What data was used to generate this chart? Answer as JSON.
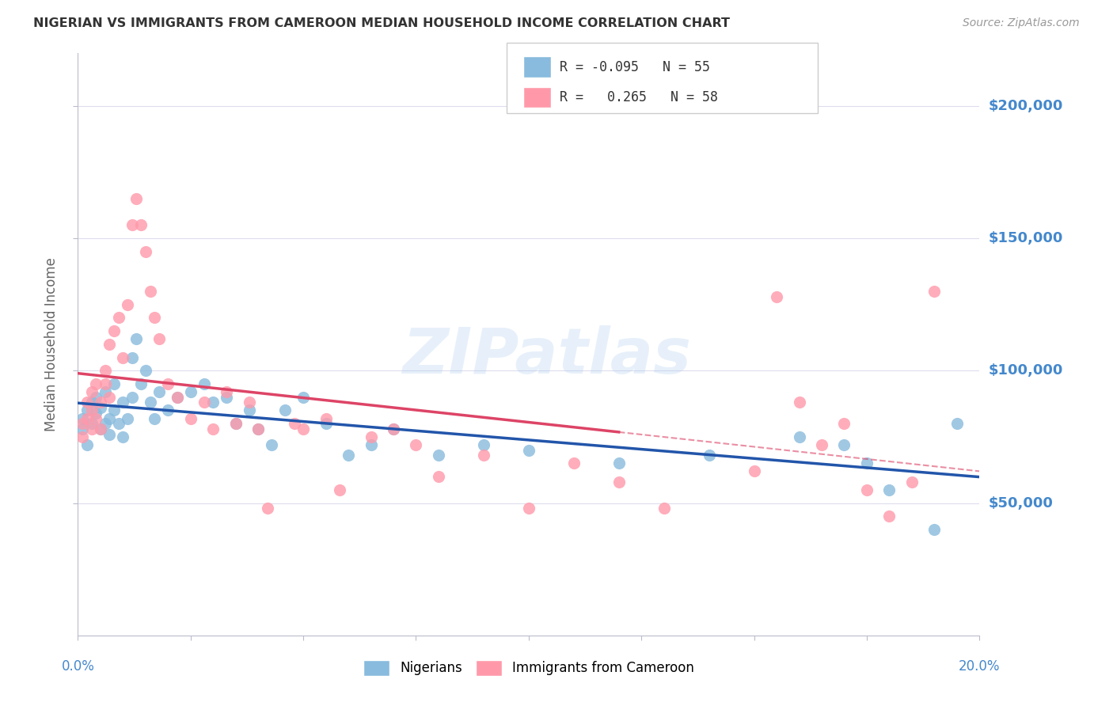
{
  "title": "NIGERIAN VS IMMIGRANTS FROM CAMEROON MEDIAN HOUSEHOLD INCOME CORRELATION CHART",
  "source": "Source: ZipAtlas.com",
  "ylabel": "Median Household Income",
  "watermark": "ZIPatlas",
  "ylim": [
    0,
    220000
  ],
  "xlim": [
    0.0,
    0.2
  ],
  "ytick_vals": [
    50000,
    100000,
    150000,
    200000
  ],
  "ytick_labels": [
    "$50,000",
    "$100,000",
    "$150,000",
    "$200,000"
  ],
  "xticks": [
    0.0,
    0.025,
    0.05,
    0.075,
    0.1,
    0.125,
    0.15,
    0.175,
    0.2
  ],
  "blue_color": "#88BBDD",
  "pink_color": "#FF99AA",
  "line_blue": "#2255AA",
  "line_pink": "#DD4466",
  "axis_color": "#4488CC",
  "grid_color": "#DDDDEE",
  "title_color": "#333333",
  "blue_scatter_x": [
    0.001,
    0.001,
    0.002,
    0.002,
    0.003,
    0.003,
    0.004,
    0.004,
    0.005,
    0.005,
    0.006,
    0.006,
    0.007,
    0.007,
    0.008,
    0.008,
    0.009,
    0.01,
    0.01,
    0.011,
    0.012,
    0.012,
    0.013,
    0.014,
    0.015,
    0.016,
    0.017,
    0.018,
    0.02,
    0.022,
    0.025,
    0.028,
    0.03,
    0.033,
    0.035,
    0.038,
    0.04,
    0.043,
    0.046,
    0.05,
    0.055,
    0.06,
    0.065,
    0.07,
    0.08,
    0.09,
    0.1,
    0.12,
    0.14,
    0.16,
    0.17,
    0.175,
    0.18,
    0.19,
    0.195
  ],
  "blue_scatter_y": [
    82000,
    78000,
    85000,
    72000,
    88000,
    80000,
    84000,
    90000,
    78000,
    86000,
    80000,
    92000,
    82000,
    76000,
    85000,
    95000,
    80000,
    88000,
    75000,
    82000,
    105000,
    90000,
    112000,
    95000,
    100000,
    88000,
    82000,
    92000,
    85000,
    90000,
    92000,
    95000,
    88000,
    90000,
    80000,
    85000,
    78000,
    72000,
    85000,
    90000,
    80000,
    68000,
    72000,
    78000,
    68000,
    72000,
    70000,
    65000,
    68000,
    75000,
    72000,
    65000,
    55000,
    40000,
    80000
  ],
  "pink_scatter_x": [
    0.001,
    0.001,
    0.002,
    0.002,
    0.003,
    0.003,
    0.003,
    0.004,
    0.004,
    0.005,
    0.005,
    0.006,
    0.006,
    0.007,
    0.007,
    0.008,
    0.009,
    0.01,
    0.011,
    0.012,
    0.013,
    0.014,
    0.015,
    0.016,
    0.017,
    0.018,
    0.02,
    0.022,
    0.025,
    0.028,
    0.03,
    0.033,
    0.035,
    0.038,
    0.04,
    0.042,
    0.048,
    0.05,
    0.055,
    0.058,
    0.065,
    0.07,
    0.075,
    0.08,
    0.09,
    0.1,
    0.11,
    0.12,
    0.13,
    0.15,
    0.155,
    0.16,
    0.165,
    0.17,
    0.175,
    0.18,
    0.185,
    0.19
  ],
  "pink_scatter_y": [
    80000,
    75000,
    82000,
    88000,
    85000,
    78000,
    92000,
    95000,
    82000,
    88000,
    78000,
    95000,
    100000,
    110000,
    90000,
    115000,
    120000,
    105000,
    125000,
    155000,
    165000,
    155000,
    145000,
    130000,
    120000,
    112000,
    95000,
    90000,
    82000,
    88000,
    78000,
    92000,
    80000,
    88000,
    78000,
    48000,
    80000,
    78000,
    82000,
    55000,
    75000,
    78000,
    72000,
    60000,
    68000,
    48000,
    65000,
    58000,
    48000,
    62000,
    128000,
    88000,
    72000,
    80000,
    55000,
    45000,
    58000,
    130000
  ]
}
